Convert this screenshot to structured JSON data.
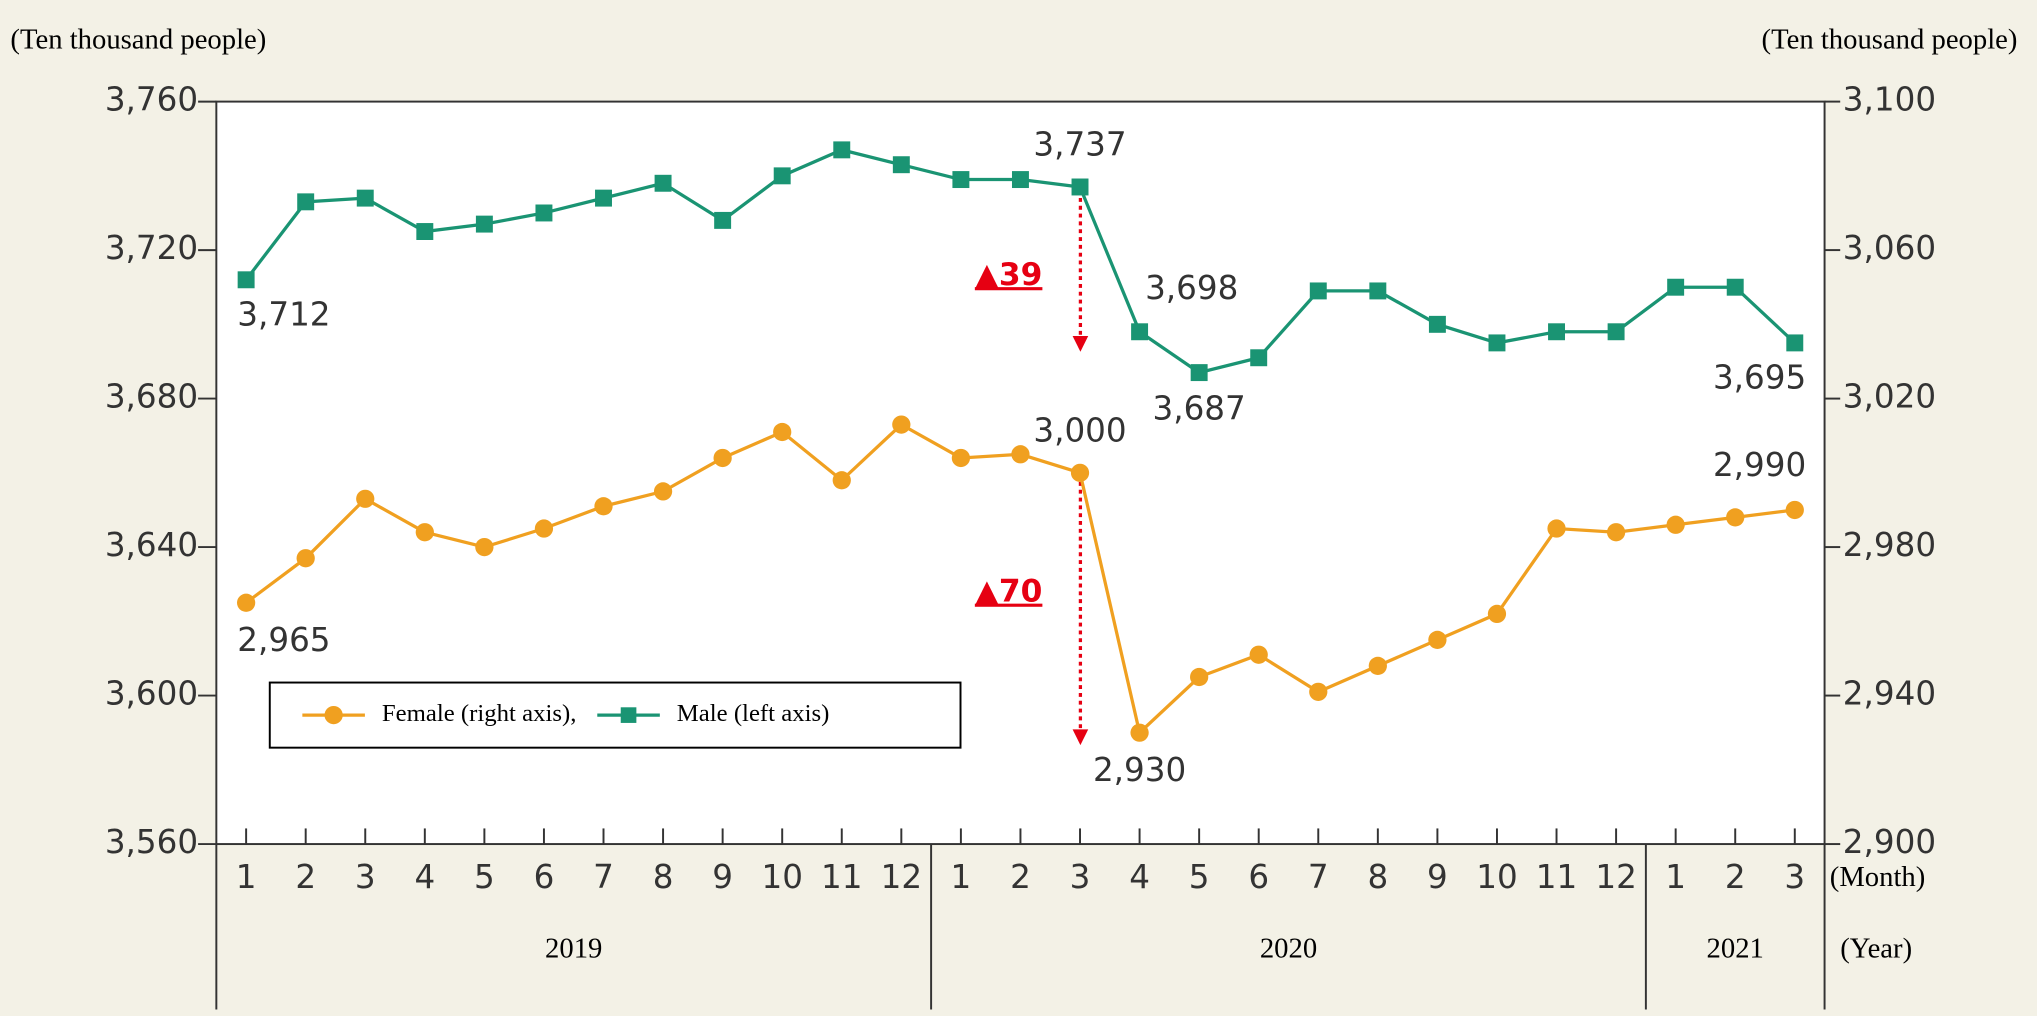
{
  "chart_data": {
    "type": "line",
    "y_unit_label": "(Ten thousand people)",
    "y2_unit_label": "(Ten thousand people)",
    "x_unit_label": "(Month)",
    "year_unit_label": "(Year)",
    "categories": [
      "1",
      "2",
      "3",
      "4",
      "5",
      "6",
      "7",
      "8",
      "9",
      "10",
      "11",
      "12",
      "1",
      "2",
      "3",
      "4",
      "5",
      "6",
      "7",
      "8",
      "9",
      "10",
      "11",
      "12",
      "1",
      "2",
      "3"
    ],
    "year_groups": [
      {
        "label": "2019",
        "count": 12
      },
      {
        "label": "2020",
        "count": 12
      },
      {
        "label": "2021",
        "count": 3
      }
    ],
    "series": [
      {
        "name": "Female (right axis),",
        "color": "#f0a020",
        "marker": "circle",
        "axis": "y2",
        "values": [
          2965,
          2977,
          2993,
          2984,
          2980,
          2985,
          2991,
          2995,
          3004,
          3011,
          2998,
          3013,
          3004,
          3005,
          3000,
          2930,
          2945,
          2951,
          2941,
          2948,
          2955,
          2962,
          2985,
          2984,
          2986,
          2988,
          2990
        ],
        "value_labels": [
          "2,965",
          null,
          null,
          null,
          null,
          null,
          null,
          null,
          null,
          null,
          null,
          null,
          null,
          null,
          "3,000",
          "2,930",
          null,
          null,
          null,
          null,
          null,
          null,
          null,
          null,
          null,
          null,
          "2,990"
        ]
      },
      {
        "name": "Male (left axis)",
        "color": "#1a9473",
        "marker": "square",
        "axis": "y",
        "values": [
          3712,
          3733,
          3734,
          3725,
          3727,
          3730,
          3734,
          3738,
          3728,
          3740,
          3747,
          3743,
          3739,
          3739,
          3737,
          3698,
          3687,
          3691,
          3709,
          3709,
          3700,
          3695,
          3698,
          3698,
          3710,
          3710,
          3695
        ],
        "value_labels": [
          "3,712",
          null,
          null,
          null,
          null,
          null,
          null,
          null,
          null,
          null,
          null,
          null,
          null,
          null,
          "3,737",
          "3,698",
          "3,687",
          null,
          null,
          null,
          null,
          null,
          null,
          null,
          null,
          null,
          "3,695"
        ]
      }
    ],
    "ylim": [
      3560,
      3760
    ],
    "yticks": [
      {
        "value": 3560,
        "label": "3,560"
      },
      {
        "value": 3600,
        "label": "3,600"
      },
      {
        "value": 3640,
        "label": "3,640"
      },
      {
        "value": 3680,
        "label": "3,680"
      },
      {
        "value": 3720,
        "label": "3,720"
      },
      {
        "value": 3760,
        "label": "3,760"
      }
    ],
    "y2lim": [
      2900,
      3100
    ],
    "y2ticks": [
      {
        "value": 2900,
        "label": "2,900"
      },
      {
        "value": 2940,
        "label": "2,940"
      },
      {
        "value": 2980,
        "label": "2,980"
      },
      {
        "value": 3020,
        "label": "3,020"
      },
      {
        "value": 3060,
        "label": "3,060"
      },
      {
        "value": 3100,
        "label": "3,100"
      }
    ],
    "annotations": [
      {
        "text": "▲39"
      },
      {
        "text": "▲70"
      }
    ],
    "grid": false
  }
}
